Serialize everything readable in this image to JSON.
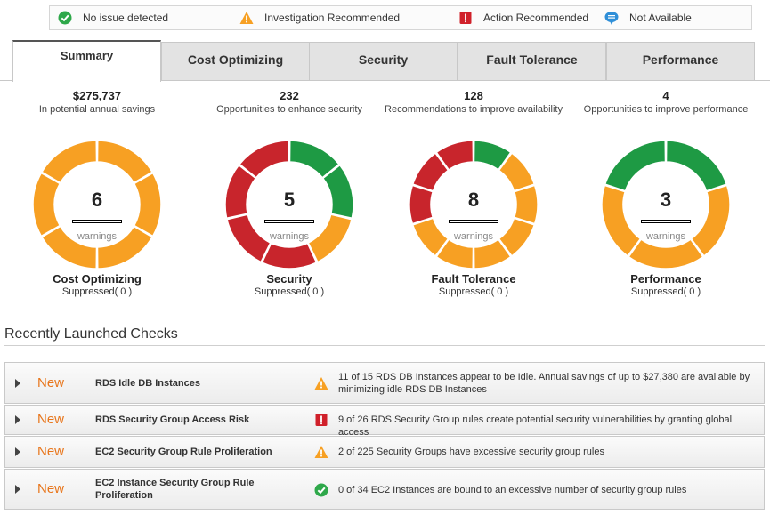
{
  "legend": [
    {
      "icon": "green-check-icon",
      "label": "No issue detected"
    },
    {
      "icon": "warning-triangle-icon",
      "label": "Investigation Recommended"
    },
    {
      "icon": "red-exclamation-icon",
      "label": "Action Recommended"
    },
    {
      "icon": "speech-bubble-icon",
      "label": "Not Available"
    }
  ],
  "tabs": [
    "Summary",
    "Cost Optimizing",
    "Security",
    "Fault Tolerance",
    "Performance"
  ],
  "active_tab": "Summary",
  "colors": {
    "green": "#1e9a44",
    "orange": "#f7a023",
    "red": "#c8252c",
    "new": "#e8761c"
  },
  "summary": [
    {
      "value": "$275,737",
      "desc": "In potential annual savings",
      "count": "6",
      "warnings_label": "warnings",
      "name": "Cost Optimizing",
      "suppressed": "Suppressed( 0 )",
      "segments": [
        "orange",
        "orange",
        "orange",
        "orange",
        "orange",
        "orange"
      ]
    },
    {
      "value": "232",
      "desc": "Opportunities to enhance security",
      "count": "5",
      "warnings_label": "warnings",
      "name": "Security",
      "suppressed": "Suppressed( 0 )",
      "segments": [
        "green",
        "green",
        "orange",
        "red",
        "red",
        "red",
        "red"
      ]
    },
    {
      "value": "128",
      "desc": "Recommendations to improve availability",
      "count": "8",
      "warnings_label": "warnings",
      "name": "Fault Tolerance",
      "suppressed": "Suppressed( 0 )",
      "segments": [
        "green",
        "orange",
        "orange",
        "orange",
        "orange",
        "orange",
        "orange",
        "red",
        "red",
        "red"
      ]
    },
    {
      "value": "4",
      "desc": "Opportunities to improve performance",
      "count": "3",
      "warnings_label": "warnings",
      "name": "Performance",
      "suppressed": "Suppressed( 0 )",
      "segments": [
        "green",
        "orange",
        "orange",
        "orange",
        "green"
      ]
    }
  ],
  "recent": {
    "title": "Recently Launched Checks",
    "checks": [
      {
        "badge": "New",
        "name": "RDS Idle DB Instances",
        "status_icon": "warning-triangle-icon",
        "desc": "11 of 15 RDS DB Instances appear to be Idle. Annual savings of up to $27,380 are available by minimizing idle RDS DB Instances"
      },
      {
        "badge": "New",
        "name": "RDS Security Group Access Risk",
        "status_icon": "red-exclamation-icon",
        "desc": "9 of 26 RDS Security Group rules create potential security vulnerabilities by granting global access"
      },
      {
        "badge": "New",
        "name": "EC2 Security Group Rule Proliferation",
        "status_icon": "warning-triangle-icon",
        "desc": "2 of 225 Security Groups have excessive security group rules"
      },
      {
        "badge": "New",
        "name": "EC2 Instance Security Group Rule Proliferation",
        "status_icon": "green-check-icon",
        "desc": "0 of 34 EC2 Instances are bound to an excessive number of security group rules"
      }
    ]
  }
}
